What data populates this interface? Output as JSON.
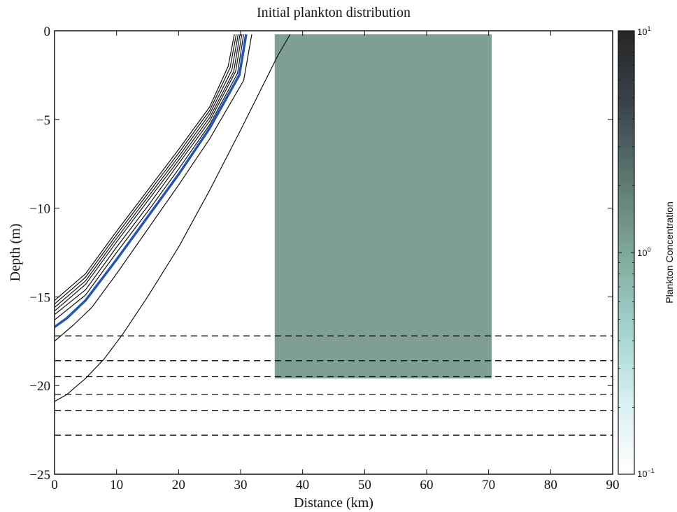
{
  "chart_data": {
    "type": "line",
    "title": "Initial plankton distribution",
    "xlabel": "Distance (km)",
    "ylabel": "Depth (m)",
    "xlim": [
      0,
      90
    ],
    "ylim": [
      -25,
      0
    ],
    "xticks": [
      0,
      10,
      20,
      30,
      40,
      50,
      60,
      70,
      80,
      90
    ],
    "yticks": [
      0,
      -5,
      -10,
      -15,
      -20,
      -25
    ],
    "xtick_labels": [
      "0",
      "10",
      "20",
      "30",
      "40",
      "50",
      "60",
      "70",
      "80",
      "90"
    ],
    "ytick_labels": [
      "0",
      "−5",
      "−10",
      "−15",
      "−20",
      "−25"
    ],
    "grid": false,
    "plankton_patch": {
      "x_range": [
        35.5,
        70.5
      ],
      "depth_range": [
        -19.6,
        -0.2
      ],
      "concentration": 1.0,
      "color": "#7f9f94"
    },
    "density_contours": [
      {
        "points": [
          [
            0,
            -15.2
          ],
          [
            5,
            -13.7
          ],
          [
            10,
            -11.3
          ],
          [
            15,
            -9.0
          ],
          [
            20,
            -6.7
          ],
          [
            25,
            -4.3
          ],
          [
            28,
            -2.0
          ],
          [
            29,
            -0.2
          ]
        ]
      },
      {
        "points": [
          [
            0,
            -15.4
          ],
          [
            5,
            -13.9
          ],
          [
            10,
            -11.5
          ],
          [
            15,
            -9.2
          ],
          [
            20,
            -6.9
          ],
          [
            25,
            -4.5
          ],
          [
            28.3,
            -2.1
          ],
          [
            29.3,
            -0.2
          ]
        ]
      },
      {
        "points": [
          [
            0,
            -15.6
          ],
          [
            5,
            -14.1
          ],
          [
            10,
            -11.7
          ],
          [
            15,
            -9.4
          ],
          [
            20,
            -7.1
          ],
          [
            25,
            -4.7
          ],
          [
            28.6,
            -2.2
          ],
          [
            29.6,
            -0.2
          ]
        ]
      },
      {
        "points": [
          [
            0,
            -15.8
          ],
          [
            5,
            -14.3
          ],
          [
            10,
            -11.9
          ],
          [
            15,
            -9.6
          ],
          [
            20,
            -7.3
          ],
          [
            25,
            -4.9
          ],
          [
            28.9,
            -2.3
          ],
          [
            29.9,
            -0.2
          ]
        ]
      },
      {
        "points": [
          [
            0,
            -16.0
          ],
          [
            5,
            -14.6
          ],
          [
            10,
            -12.2
          ],
          [
            15,
            -9.9
          ],
          [
            20,
            -7.5
          ],
          [
            25,
            -5.1
          ],
          [
            29.2,
            -2.3
          ],
          [
            30.2,
            -0.2
          ]
        ]
      },
      {
        "points": [
          [
            0,
            -16.3
          ],
          [
            5,
            -14.9
          ],
          [
            10,
            -12.5
          ],
          [
            15,
            -10.2
          ],
          [
            20,
            -7.8
          ],
          [
            25,
            -5.3
          ],
          [
            29.5,
            -2.4
          ],
          [
            30.5,
            -0.2
          ]
        ]
      },
      {
        "points": [
          [
            0,
            -16.7
          ],
          [
            2,
            -16.2
          ],
          [
            5,
            -15.2
          ],
          [
            10,
            -12.9
          ],
          [
            15,
            -10.5
          ],
          [
            20,
            -8.1
          ],
          [
            25,
            -5.5
          ],
          [
            29.8,
            -2.5
          ],
          [
            30.9,
            -0.2
          ]
        ]
      },
      {
        "points": [
          [
            0,
            -17.5
          ],
          [
            3,
            -16.6
          ],
          [
            6,
            -15.6
          ],
          [
            10,
            -13.7
          ],
          [
            15,
            -11.2
          ],
          [
            20,
            -8.7
          ],
          [
            25,
            -6.1
          ],
          [
            30.5,
            -2.8
          ],
          [
            31.8,
            -0.2
          ]
        ]
      },
      {
        "points": [
          [
            0,
            -20.9
          ],
          [
            2,
            -20.5
          ],
          [
            5,
            -19.6
          ],
          [
            8,
            -18.5
          ],
          [
            11,
            -17.1
          ],
          [
            15,
            -15.0
          ],
          [
            20,
            -12.2
          ],
          [
            25,
            -9.0
          ],
          [
            30,
            -5.6
          ],
          [
            34,
            -2.8
          ],
          [
            36,
            -1.4
          ],
          [
            38,
            -0.2
          ]
        ]
      }
    ],
    "highlight_contour_index": 6,
    "highlight_color": "#2455b0",
    "horizontal_dashed_lines": [
      -17.2,
      -18.6,
      -19.5,
      -20.5,
      -21.4,
      -22.8
    ],
    "colorbar": {
      "label": "Plankton Concentration",
      "scale": "log",
      "range": [
        0.1,
        10
      ],
      "ticks": [
        {
          "value": 10,
          "base": "10",
          "exp": "1"
        },
        {
          "value": 1,
          "base": "10",
          "exp": "0"
        },
        {
          "value": 0.1,
          "base": "10",
          "exp": "−1"
        }
      ],
      "colors": [
        "#ffffff",
        "#d7eff0",
        "#9fd2cc",
        "#7fa79a",
        "#5c7770",
        "#3a434b",
        "#262626"
      ]
    }
  }
}
